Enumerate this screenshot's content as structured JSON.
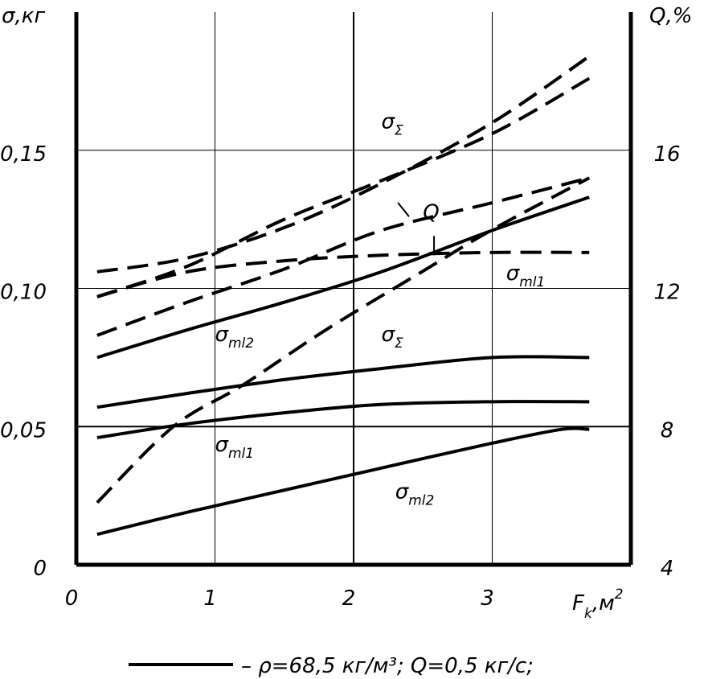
{
  "chart_data": {
    "type": "line",
    "xlabel": {
      "main": "F",
      "sub": "k",
      "rest": ",м",
      "sup": "2"
    },
    "ylabel_left": "σ,кг",
    "ylabel_right": "Q,%",
    "x_ticks": [
      "0",
      "1",
      "2",
      "3"
    ],
    "y_left_ticks": [
      "0",
      "0,05",
      "0,10",
      "0,15"
    ],
    "y_right_ticks": [
      "4",
      "8",
      "12",
      "16"
    ],
    "xlim": [
      0,
      4.0
    ],
    "ylim_left": [
      0,
      0.2
    ],
    "ylim_right": [
      4,
      20
    ],
    "grid": true,
    "series": [
      {
        "label": "σΣ",
        "style": "solid",
        "x": [
          0.15,
          0.8,
          1.5,
          2.2,
          3.0,
          3.7
        ],
        "y": [
          0.057,
          0.062,
          0.067,
          0.071,
          0.075,
          0.075
        ]
      },
      {
        "label": "σml1",
        "style": "solid",
        "x": [
          0.15,
          0.8,
          1.5,
          2.2,
          3.0,
          3.7
        ],
        "y": [
          0.046,
          0.051,
          0.055,
          0.058,
          0.059,
          0.059
        ]
      },
      {
        "label": "σml2",
        "style": "solid",
        "x": [
          0.15,
          0.8,
          1.5,
          2.2,
          3.0,
          3.5,
          3.7
        ],
        "y": [
          0.011,
          0.019,
          0.027,
          0.035,
          0.044,
          0.049,
          0.049
        ]
      },
      {
        "label": "σml2",
        "style": "solid",
        "x": [
          0.15,
          0.8,
          1.5,
          2.2,
          3.0,
          3.7
        ],
        "y": [
          0.075,
          0.085,
          0.095,
          0.106,
          0.121,
          0.133
        ]
      },
      {
        "label": "σΣ",
        "style": "dashed",
        "x": [
          0.15,
          0.8,
          1.5,
          2.2,
          3.0,
          3.7
        ],
        "y": [
          0.106,
          0.111,
          0.122,
          0.138,
          0.16,
          0.184
        ]
      },
      {
        "label": "σml1",
        "style": "dashed",
        "x": [
          0.15,
          0.8,
          1.5,
          2.2,
          3.0,
          3.7
        ],
        "y": [
          0.097,
          0.106,
          0.11,
          0.112,
          0.113,
          0.113
        ]
      },
      {
        "label": "",
        "style": "dashed",
        "x": [
          0.15,
          0.8,
          1.5,
          2.2,
          3.0,
          3.7
        ],
        "y": [
          0.083,
          0.095,
          0.107,
          0.121,
          0.131,
          0.14
        ]
      },
      {
        "label": "",
        "style": "dashed",
        "x": [
          0.15,
          0.8,
          1.5,
          2.2,
          3.0,
          3.7
        ],
        "y": [
          0.097,
          0.108,
          0.125,
          0.139,
          0.156,
          0.176
        ]
      },
      {
        "label": "Q",
        "style": "dashed",
        "axis": "right",
        "x": [
          0.15,
          0.7,
          1.2,
          1.8,
          2.5,
          3.0,
          3.7
        ],
        "y": [
          5.8,
          8.0,
          9.2,
          10.8,
          12.5,
          13.7,
          15.2
        ]
      }
    ],
    "curve_labels": [
      {
        "text": "σ",
        "sub": "Σ",
        "x": 2.2,
        "y": 0.158
      },
      {
        "text": "Q",
        "sub": "",
        "x": 2.5,
        "y": 0.125
      },
      {
        "text": "σ",
        "sub": "ml1",
        "x": 3.1,
        "y": 0.103
      },
      {
        "text": "σ",
        "sub": "ml2",
        "x": 1.0,
        "y": 0.081
      },
      {
        "text": "σ",
        "sub": "Σ",
        "x": 2.2,
        "y": 0.081
      },
      {
        "text": "σ",
        "sub": "ml1",
        "x": 1.0,
        "y": 0.041
      },
      {
        "text": "σ",
        "sub": "ml2",
        "x": 2.3,
        "y": 0.024
      }
    ],
    "legend": {
      "placement": "bottom",
      "text": "– ρ=68,5 кг/м³; Q=0,5 кг/с;"
    }
  }
}
